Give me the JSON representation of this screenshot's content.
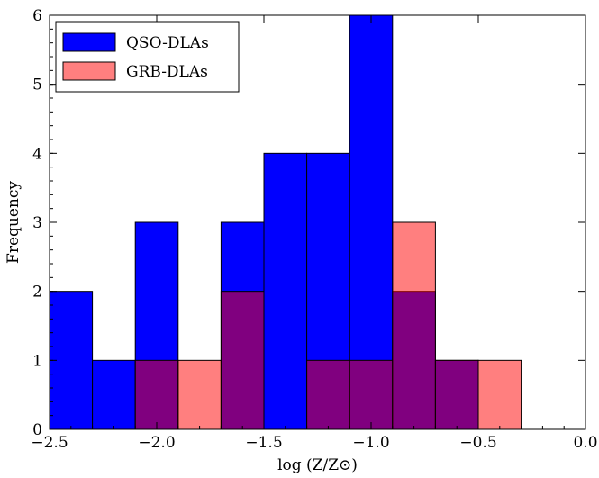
{
  "chart_data": {
    "type": "bar",
    "xlabel": "log (Z/Z⊙)",
    "ylabel": "Frequency",
    "xlim": [
      -2.5,
      0.0
    ],
    "ylim": [
      0,
      6
    ],
    "xticks": [
      -2.5,
      -2.0,
      -1.5,
      -1.0,
      -0.5,
      0.0
    ],
    "xtick_labels": [
      "−2.5",
      "−2.0",
      "−1.5",
      "−1.0",
      "−0.5",
      "0.0"
    ],
    "yticks": [
      0,
      1,
      2,
      3,
      4,
      5,
      6
    ],
    "ytick_labels": [
      "0",
      "1",
      "2",
      "3",
      "4",
      "5",
      "6"
    ],
    "bin_edges": [
      -2.5,
      -2.3,
      -2.1,
      -1.9,
      -1.7,
      -1.5,
      -1.3,
      -1.1,
      -0.9,
      -0.7,
      -0.5,
      -0.3,
      -0.1
    ],
    "series": [
      {
        "name": "QSO-DLAs",
        "color": "#0000ff",
        "values": [
          2,
          1,
          3,
          0,
          3,
          4,
          4,
          6,
          2,
          1,
          0,
          0
        ]
      },
      {
        "name": "GRB-DLAs",
        "color": "#ff0000",
        "alpha": 0.5,
        "values": [
          0,
          0,
          1,
          1,
          2,
          0,
          1,
          1,
          3,
          1,
          1,
          0
        ]
      }
    ],
    "legend_position": "top-left",
    "grid": false
  }
}
